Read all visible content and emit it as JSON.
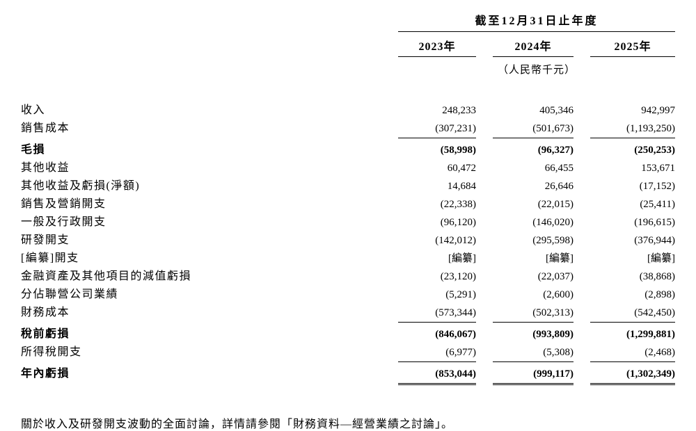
{
  "table": {
    "period_header": "截至12月31日止年度",
    "currency_note": "（人民幣千元）",
    "columns": [
      "2023年",
      "2024年",
      "2025年"
    ],
    "rows": [
      {
        "label": "收入",
        "values": [
          "248,233",
          "405,346",
          "942,997"
        ]
      },
      {
        "label": "銷售成本",
        "values": [
          "(307,231)",
          "(501,673)",
          "(1,193,250)"
        ]
      },
      {
        "label": "毛損",
        "values": [
          "(58,998)",
          "(96,327)",
          "(250,253)"
        ]
      },
      {
        "label": "其他收益",
        "values": [
          "60,472",
          "66,455",
          "153,671"
        ]
      },
      {
        "label": "其他收益及虧損(淨額)",
        "values": [
          "14,684",
          "26,646",
          "(17,152)"
        ]
      },
      {
        "label": "銷售及營銷開支",
        "values": [
          "(22,338)",
          "(22,015)",
          "(25,411)"
        ]
      },
      {
        "label": "一般及行政開支",
        "values": [
          "(96,120)",
          "(146,020)",
          "(196,615)"
        ]
      },
      {
        "label": "研發開支",
        "values": [
          "(142,012)",
          "(295,598)",
          "(376,944)"
        ]
      },
      {
        "label": "[編纂]開支",
        "values": [
          "[編纂]",
          "[編纂]",
          "[編纂]"
        ]
      },
      {
        "label": "金融資產及其他項目的減值虧損",
        "values": [
          "(23,120)",
          "(22,037)",
          "(38,868)"
        ]
      },
      {
        "label": "分佔聯營公司業績",
        "values": [
          "(5,291)",
          "(2,600)",
          "(2,898)"
        ]
      },
      {
        "label": "財務成本",
        "values": [
          "(573,344)",
          "(502,313)",
          "(542,450)"
        ]
      },
      {
        "label": "稅前虧損",
        "values": [
          "(846,067)",
          "(993,809)",
          "(1,299,881)"
        ]
      },
      {
        "label": "所得稅開支",
        "values": [
          "(6,977)",
          "(5,308)",
          "(2,468)"
        ]
      },
      {
        "label": "年內虧損",
        "values": [
          "(853,044)",
          "(999,117)",
          "(1,302,349)"
        ]
      }
    ]
  },
  "footer": {
    "note": "關於收入及研發開支波動的全面討論，詳情請參閱「財務資料—經營業績之討論」。"
  }
}
